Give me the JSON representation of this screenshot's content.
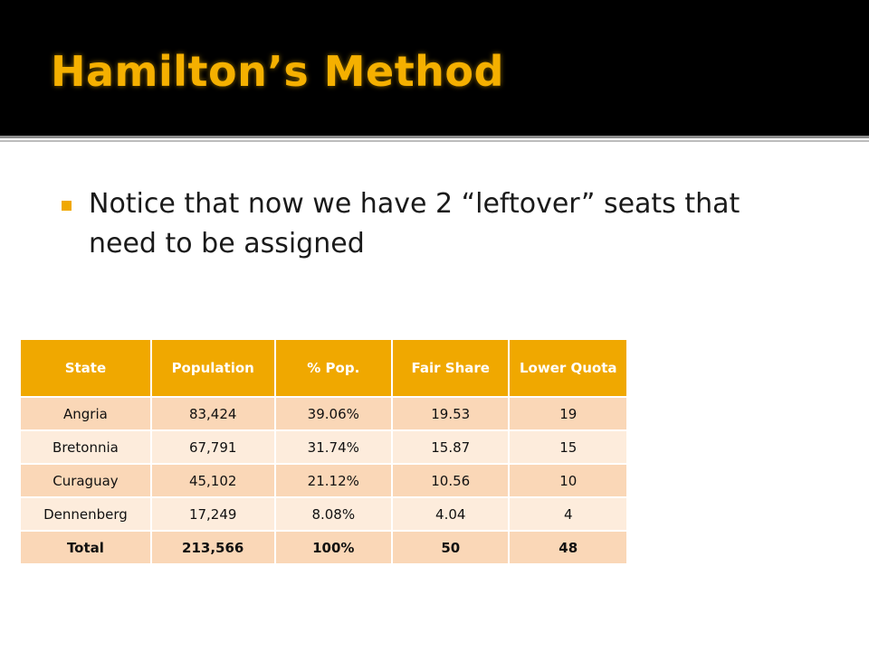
{
  "slide": {
    "title": "Hamilton’s Method",
    "bullet": "Notice that now we have 2 “leftover” seats that need to be assigned"
  },
  "table": {
    "headers": [
      "State",
      "Population",
      "% Pop.",
      "Fair Share",
      "Lower Quota"
    ],
    "rows": [
      [
        "Angria",
        "83,424",
        "39.06%",
        "19.53",
        "19"
      ],
      [
        "Bretonnia",
        "67,791",
        "31.74%",
        "15.87",
        "15"
      ],
      [
        "Curaguay",
        "45,102",
        "21.12%",
        "10.56",
        "10"
      ],
      [
        "Dennenberg",
        "17,249",
        "8.08%",
        "4.04",
        "4"
      ]
    ],
    "total": [
      "Total",
      "213,566",
      "100%",
      "50",
      "48"
    ]
  },
  "colors": {
    "title": "#f5b000",
    "header_bg": "#f0a800",
    "row_odd": "#fad7b7",
    "row_even": "#fdecdc",
    "bullet": "#f0a800"
  }
}
